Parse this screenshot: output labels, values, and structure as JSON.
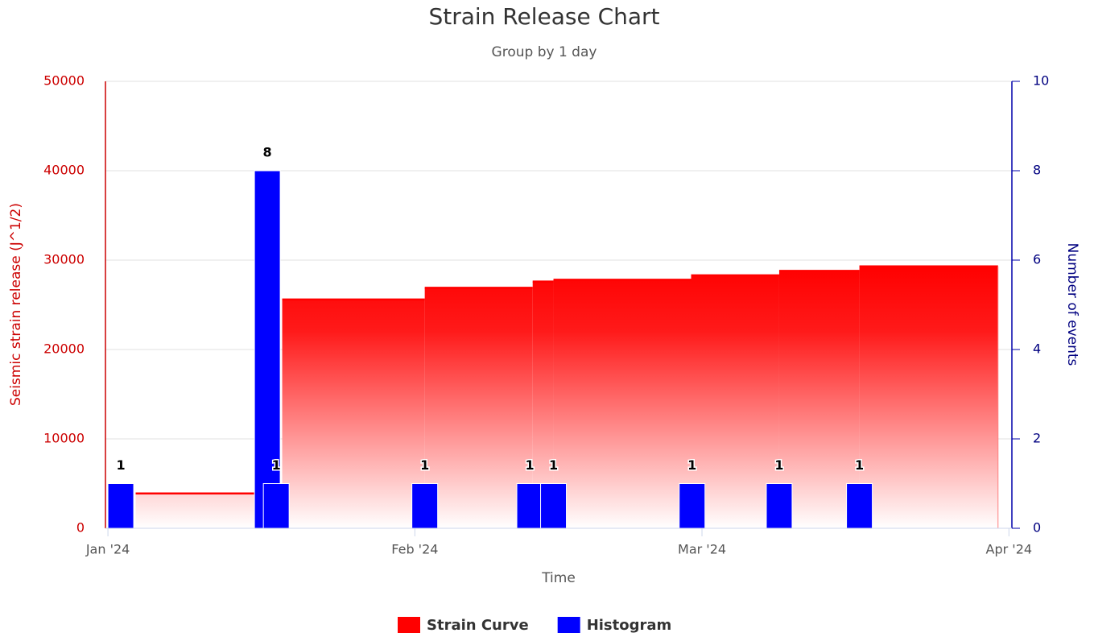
{
  "chart_data": {
    "type": "combo",
    "title": "Strain Release Chart",
    "subtitle": "Group by 1 day",
    "xlabel": "Time",
    "ylabel": "Seismic strain release (J^1/2)",
    "y2label": "Number of events",
    "xlim": [
      -0.25,
      91.3
    ],
    "xticks": [
      {
        "value": 0,
        "label": "Jan '24"
      },
      {
        "value": 31,
        "label": "Feb '24"
      },
      {
        "value": 60,
        "label": "Mar '24"
      },
      {
        "value": 91,
        "label": "Apr '24"
      }
    ],
    "ylim": [
      0,
      50000
    ],
    "yticks": [
      0,
      10000,
      20000,
      30000,
      40000,
      50000
    ],
    "y2lim": [
      0,
      10
    ],
    "y2ticks": [
      0,
      2,
      4,
      6,
      8,
      10
    ],
    "grid": true,
    "legend": "bottom",
    "series": [
      {
        "name": "Strain Curve",
        "type": "area",
        "color": "#ff0000",
        "x": [
          2.8,
          17.6,
          32,
          42.9,
          45,
          58.9,
          67.8,
          75.9,
          89.9
        ],
        "values": [
          3900,
          25600,
          26900,
          27600,
          27800,
          28300,
          28800,
          29300,
          29300
        ]
      },
      {
        "name": "Histogram",
        "type": "column",
        "color": "#0000ff",
        "axis": "y2",
        "x": [
          1.3,
          16.1,
          17,
          32,
          42.6,
          45,
          59,
          67.8,
          75.9
        ],
        "values": [
          1,
          8,
          1,
          1,
          1,
          1,
          1,
          1,
          1
        ]
      }
    ]
  }
}
